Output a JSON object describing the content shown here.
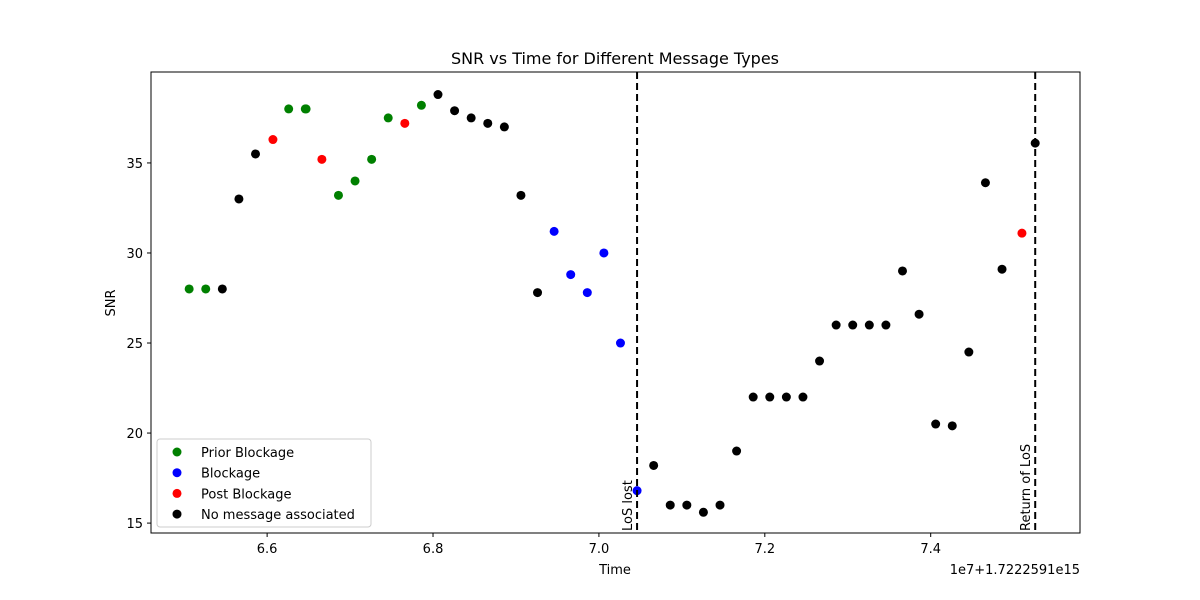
{
  "chart_data": {
    "type": "scatter",
    "title": "SNR vs Time for Different Message Types",
    "xlabel": "Time",
    "ylabel": "SNR",
    "offset_label": "1e7+1.7222591e15",
    "xlim": [
      6.46,
      7.58
    ],
    "ylim": [
      14.45,
      40.05
    ],
    "xticks": [
      6.6,
      6.8,
      7.0,
      7.2,
      7.4
    ],
    "yticks": [
      15,
      20,
      25,
      30,
      35
    ],
    "grid": false,
    "legend_position": "lower-left",
    "series": [
      {
        "name": "Prior Blockage",
        "color": "#008000",
        "points": [
          [
            6.506,
            28.0
          ],
          [
            6.526,
            28.0
          ],
          [
            6.626,
            38.0
          ],
          [
            6.646,
            38.0
          ],
          [
            6.647,
            38.0
          ],
          [
            6.686,
            33.2
          ],
          [
            6.706,
            34.0
          ],
          [
            6.726,
            35.2
          ],
          [
            6.746,
            37.5
          ],
          [
            6.786,
            38.2
          ]
        ]
      },
      {
        "name": "Blockage",
        "color": "#0000ff",
        "points": [
          [
            6.946,
            31.2
          ],
          [
            6.966,
            28.8
          ],
          [
            6.986,
            27.8
          ],
          [
            7.006,
            30.0
          ],
          [
            7.026,
            25.0
          ],
          [
            7.046,
            16.8
          ]
        ]
      },
      {
        "name": "Post Blockage",
        "color": "#ff0000",
        "points": [
          [
            6.607,
            36.3
          ],
          [
            6.666,
            35.2
          ],
          [
            6.766,
            37.2
          ],
          [
            7.51,
            31.1
          ]
        ]
      },
      {
        "name": "No message associated",
        "color": "#000000",
        "points": [
          [
            6.546,
            28.0
          ],
          [
            6.566,
            33.0
          ],
          [
            6.586,
            35.5
          ],
          [
            6.806,
            38.8
          ],
          [
            6.826,
            37.9
          ],
          [
            6.846,
            37.5
          ],
          [
            6.866,
            37.2
          ],
          [
            6.886,
            37.0
          ],
          [
            6.906,
            33.2
          ],
          [
            6.926,
            27.8
          ],
          [
            7.066,
            18.2
          ],
          [
            7.086,
            16.0
          ],
          [
            7.106,
            16.0
          ],
          [
            7.126,
            15.6
          ],
          [
            7.146,
            16.0
          ],
          [
            7.166,
            19.0
          ],
          [
            7.186,
            22.0
          ],
          [
            7.206,
            22.0
          ],
          [
            7.226,
            22.0
          ],
          [
            7.246,
            22.0
          ],
          [
            7.266,
            24.0
          ],
          [
            7.286,
            26.0
          ],
          [
            7.306,
            26.0
          ],
          [
            7.326,
            26.0
          ],
          [
            7.346,
            26.0
          ],
          [
            7.366,
            29.0
          ],
          [
            7.386,
            26.6
          ],
          [
            7.406,
            20.5
          ],
          [
            7.426,
            20.4
          ],
          [
            7.446,
            24.5
          ],
          [
            7.466,
            33.9
          ],
          [
            7.486,
            29.1
          ],
          [
            7.526,
            36.1
          ]
        ]
      }
    ],
    "vlines": [
      {
        "x": 7.046,
        "label": "LoS lost"
      },
      {
        "x": 7.526,
        "label": "Return of LoS"
      }
    ]
  }
}
